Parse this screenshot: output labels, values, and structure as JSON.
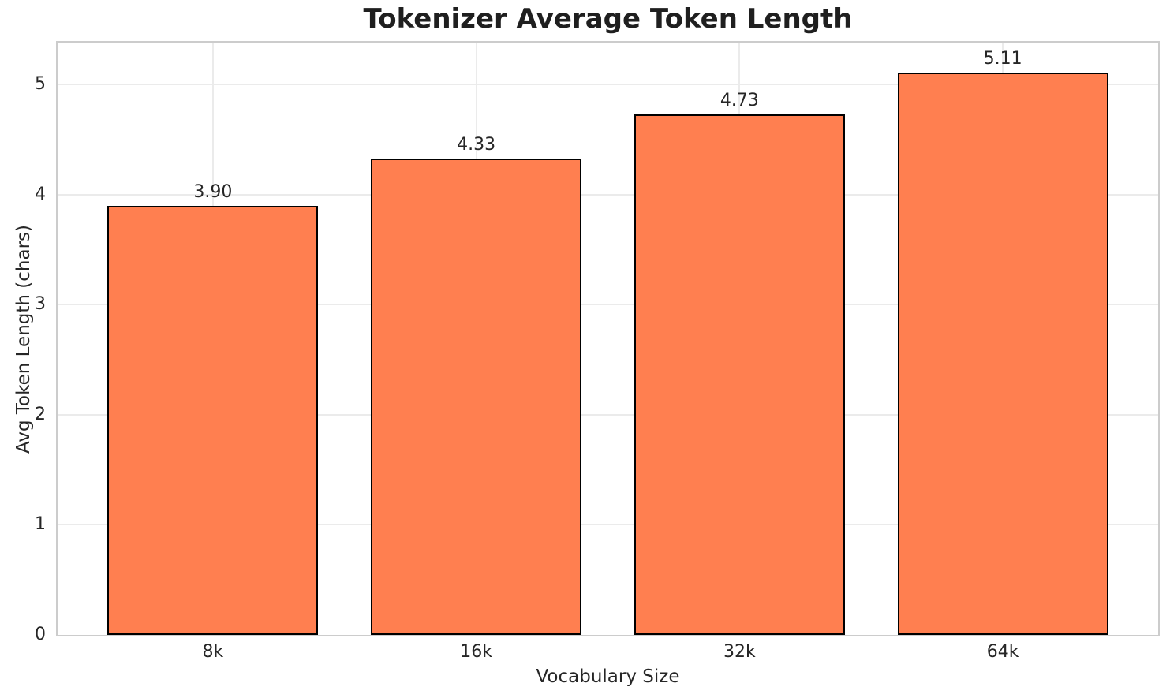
{
  "chart_data": {
    "type": "bar",
    "title": "Tokenizer Average Token Length",
    "xlabel": "Vocabulary Size",
    "ylabel": "Avg Token Length (chars)",
    "categories": [
      "8k",
      "16k",
      "32k",
      "64k"
    ],
    "values": [
      3.9,
      4.33,
      4.73,
      5.11
    ],
    "value_labels": [
      "3.90",
      "4.33",
      "4.73",
      "5.11"
    ],
    "yticks": [
      0,
      1,
      2,
      3,
      4,
      5
    ],
    "ytick_labels": [
      "0",
      "1",
      "2",
      "3",
      "4",
      "5"
    ],
    "ylim": [
      0,
      5.38
    ],
    "grid": true,
    "grid_axes": "both",
    "legend": "none",
    "colors": {
      "bar_fill": "#FF7F50",
      "bar_edge": "#000000",
      "grid_line": "#EBEBEB",
      "spine": "#CCCCCC",
      "text": "#262626",
      "title_text": "#1F1F1F",
      "background": "#FFFFFF"
    }
  }
}
